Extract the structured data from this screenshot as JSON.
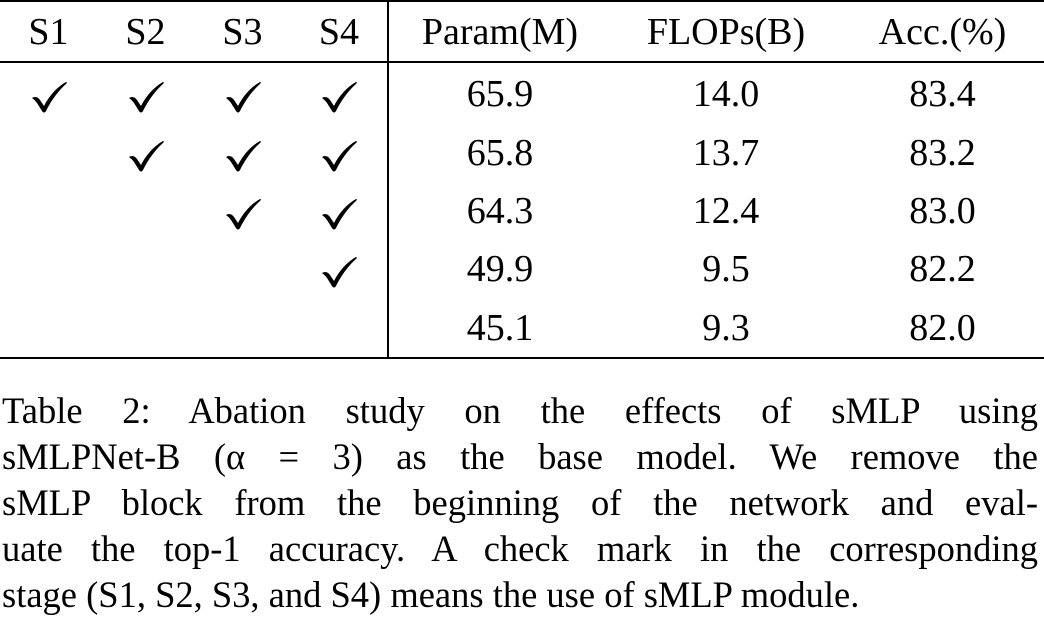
{
  "table": {
    "stage_headers": [
      "S1",
      "S2",
      "S3",
      "S4"
    ],
    "metric_headers": [
      "Param(M)",
      "FLOPs(B)",
      "Acc.(%)"
    ],
    "rows": [
      {
        "stages": [
          true,
          true,
          true,
          true
        ],
        "param": "65.9",
        "flops": "14.0",
        "acc": "83.4"
      },
      {
        "stages": [
          false,
          true,
          true,
          true
        ],
        "param": "65.8",
        "flops": "13.7",
        "acc": "83.2"
      },
      {
        "stages": [
          false,
          false,
          true,
          true
        ],
        "param": "64.3",
        "flops": "12.4",
        "acc": "83.0"
      },
      {
        "stages": [
          false,
          false,
          false,
          true
        ],
        "param": "49.9",
        "flops": "9.5",
        "acc": "82.2"
      },
      {
        "stages": [
          false,
          false,
          false,
          false
        ],
        "param": "45.1",
        "flops": "9.3",
        "acc": "82.0"
      }
    ]
  },
  "caption": {
    "lines": [
      "Table 2: Abation study on the effects of sMLP using",
      "sMLPNet-B (α = 3) as the base model. We remove the",
      "sMLP block from the beginning of the network and eval-",
      "uate the top-1 accuracy. A check mark in the corresponding",
      "stage (S1, S2, S3, and S4) means the use of sMLP module."
    ]
  },
  "icons": {
    "check": "check-mark-icon"
  }
}
